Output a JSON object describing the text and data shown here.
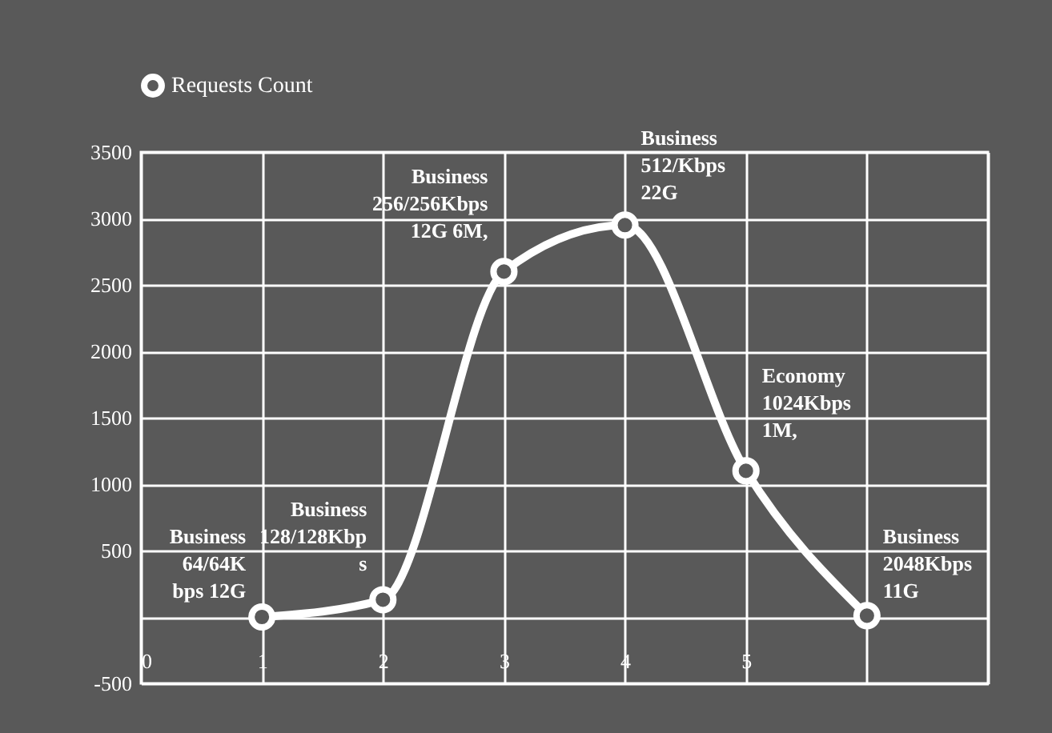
{
  "chart_data": {
    "type": "line",
    "legend_title": null,
    "x": [
      1,
      2,
      3,
      4,
      5,
      6
    ],
    "series": [
      {
        "name": "Requests Count",
        "color": "#ffffff",
        "values": [
          0,
          130,
          2600,
          2950,
          1100,
          10
        ]
      }
    ],
    "xlim": [
      0,
      7
    ],
    "xticks": [
      0,
      1,
      2,
      3,
      4,
      5,
      {
        "value": 6,
        "label": null
      },
      {
        "value": 7,
        "label": null
      }
    ],
    "ylim": [
      -500,
      3500
    ],
    "yticks": [
      -500,
      {
        "value": 0,
        "label": null
      },
      500,
      1000,
      1500,
      2000,
      2500,
      3000,
      3500
    ],
    "grid": true,
    "legend": "top",
    "marker": "circle",
    "line_style": "solid",
    "annotations": [
      {
        "text": "Business\n64/64K\nbps 12G",
        "x": 1,
        "y": 0
      },
      {
        "text": "Business\n128/128Kbp\ns",
        "x": 2,
        "y": 130
      },
      {
        "text": "Business\n256/256Kbps\n12G 6M,",
        "x": 3,
        "y": 2600
      },
      {
        "text": "Business\n512/Kbps\n22G",
        "x": 4,
        "y": 2950
      },
      {
        "text": "Economy\n1024Kbps\n1M,",
        "x": 5,
        "y": 1100
      },
      {
        "text": "Business\n2048Kbps\n11G",
        "x": 6,
        "y": 10
      }
    ]
  }
}
